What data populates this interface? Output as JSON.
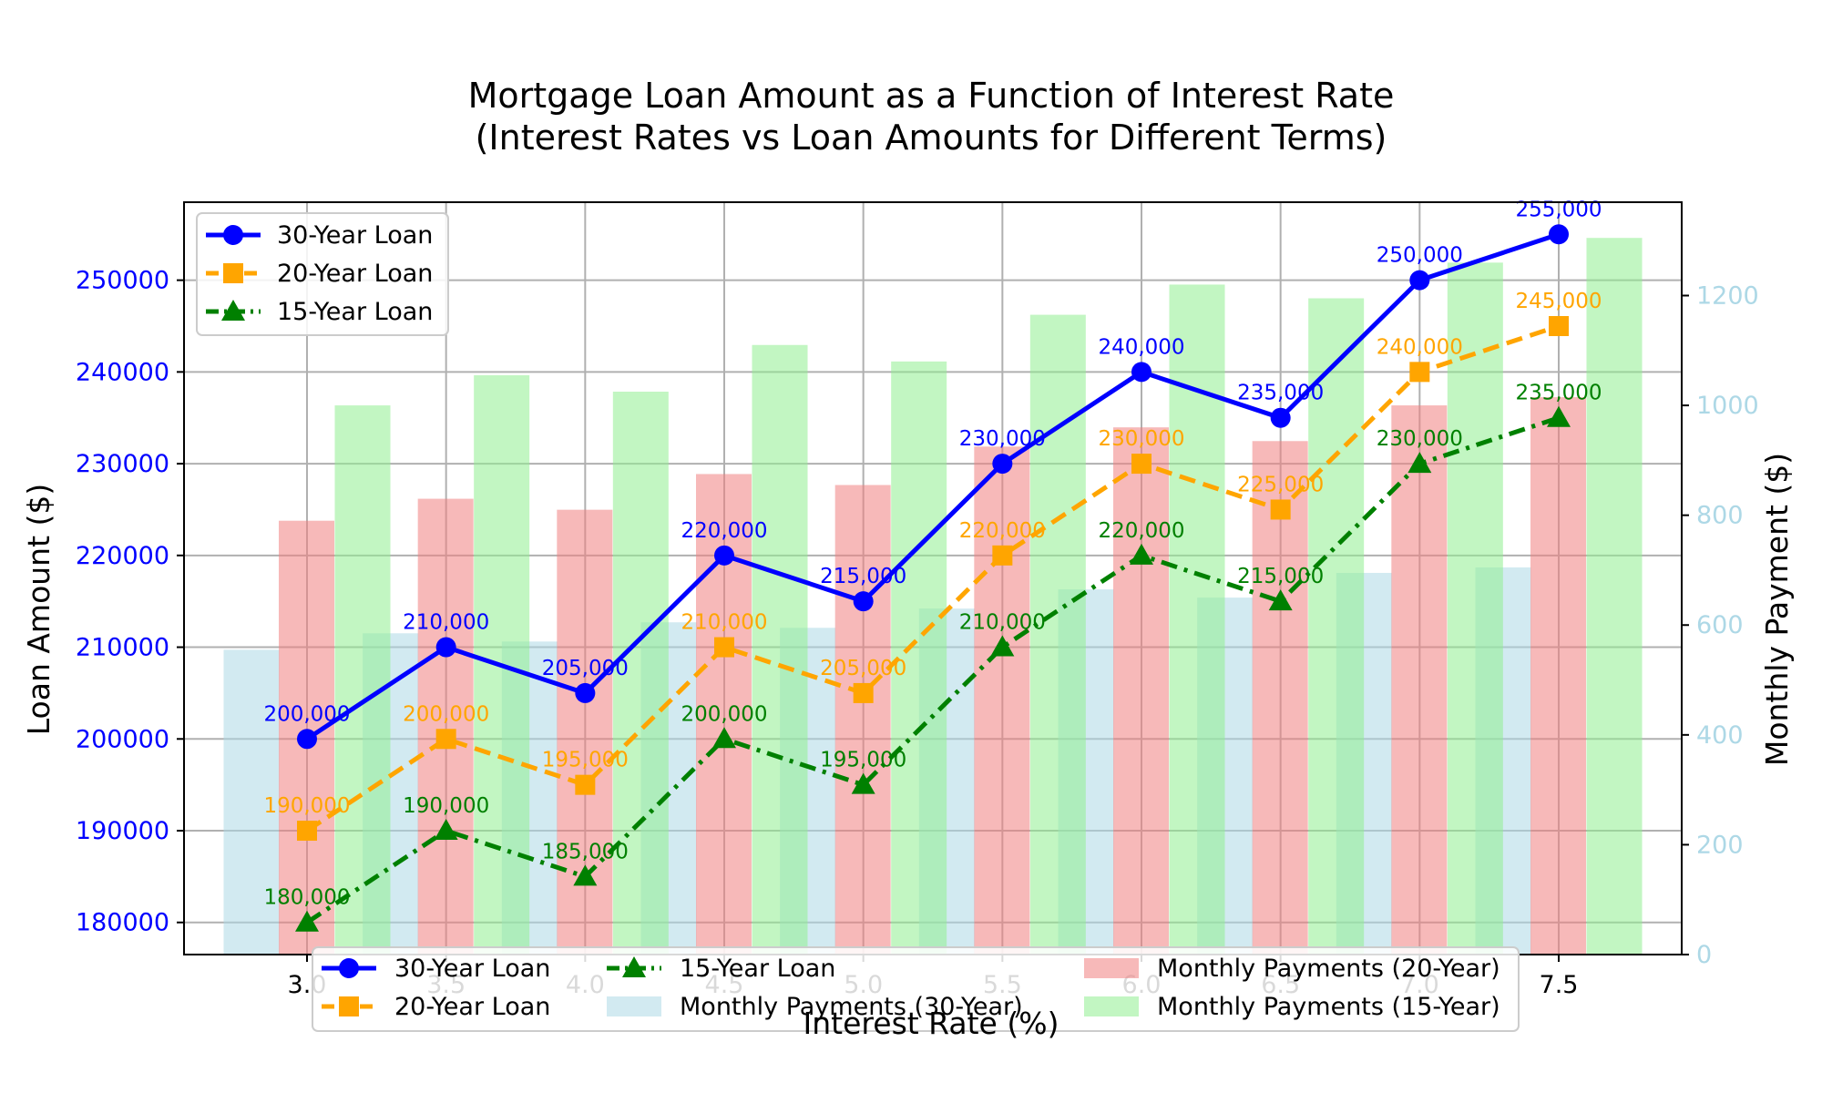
{
  "chart_data": {
    "type": "bar+line",
    "title_line1": "Mortgage Loan Amount as a Function of Interest Rate",
    "title_line2": "(Interest Rates vs Loan Amounts for Different Terms)",
    "xlabel": "Interest Rate (%)",
    "ylabel_left": "Loan Amount ($)",
    "ylabel_right": "Monthly Payment ($)",
    "x": [
      3.0,
      3.5,
      4.0,
      4.5,
      5.0,
      5.5,
      6.0,
      6.5,
      7.0,
      7.5
    ],
    "x_tick_labels": [
      "3.0",
      "3.5",
      "4.0",
      "4.5",
      "5.0",
      "5.5",
      "6.0",
      "6.5",
      "7.0",
      "7.5"
    ],
    "ylim_left": [
      176500,
      258500
    ],
    "yticks_left": [
      180000,
      190000,
      200000,
      210000,
      220000,
      230000,
      240000,
      250000
    ],
    "ylim_right": [
      0,
      1370
    ],
    "yticks_right": [
      0,
      200,
      400,
      600,
      800,
      1000,
      1200
    ],
    "grid": true,
    "line_series": [
      {
        "name": "30-Year Loan",
        "color": "#0000ff",
        "marker": "circle",
        "style": "solid",
        "values": [
          200000,
          210000,
          205000,
          220000,
          215000,
          230000,
          240000,
          235000,
          250000,
          255000
        ],
        "labels": [
          "200,000",
          "210,000",
          "205,000",
          "220,000",
          "215,000",
          "230,000",
          "240,000",
          "235,000",
          "250,000",
          "255,000"
        ]
      },
      {
        "name": "20-Year Loan",
        "color": "#ffa500",
        "marker": "square",
        "style": "dashed",
        "values": [
          190000,
          200000,
          195000,
          210000,
          205000,
          220000,
          230000,
          225000,
          240000,
          245000
        ],
        "labels": [
          "190,000",
          "200,000",
          "195,000",
          "210,000",
          "205,000",
          "220,000",
          "230,000",
          "225,000",
          "240,000",
          "245,000"
        ]
      },
      {
        "name": "15-Year Loan",
        "color": "#008000",
        "marker": "triangle",
        "style": "dashdot",
        "values": [
          180000,
          190000,
          185000,
          200000,
          195000,
          210000,
          220000,
          215000,
          230000,
          235000
        ],
        "labels": [
          "180,000",
          "190,000",
          "185,000",
          "200,000",
          "195,000",
          "210,000",
          "220,000",
          "215,000",
          "230,000",
          "235,000"
        ]
      }
    ],
    "bar_series": [
      {
        "name": "Monthly Payments (30-Year)",
        "color": "#add8e6",
        "values": [
          555,
          585,
          570,
          605,
          595,
          630,
          665,
          650,
          695,
          705
        ]
      },
      {
        "name": "Monthly Payments (20-Year)",
        "color": "#f08080",
        "values": [
          790,
          830,
          810,
          875,
          855,
          925,
          960,
          935,
          1000,
          1015
        ]
      },
      {
        "name": "Monthly Payments (15-Year)",
        "color": "#90ee90",
        "values": [
          1000,
          1055,
          1025,
          1110,
          1080,
          1165,
          1220,
          1195,
          1260,
          1305
        ]
      }
    ],
    "legend_top_left": [
      "30-Year Loan",
      "20-Year Loan",
      "15-Year Loan"
    ],
    "legend_bottom": [
      "30-Year Loan",
      "20-Year Loan",
      "15-Year Loan",
      "Monthly Payments (30-Year)",
      "Monthly Payments (20-Year)",
      "Monthly Payments (15-Year)"
    ],
    "colors": {
      "left_axis_ticks": "#0000ff",
      "right_axis_ticks": "#add8e6"
    }
  }
}
